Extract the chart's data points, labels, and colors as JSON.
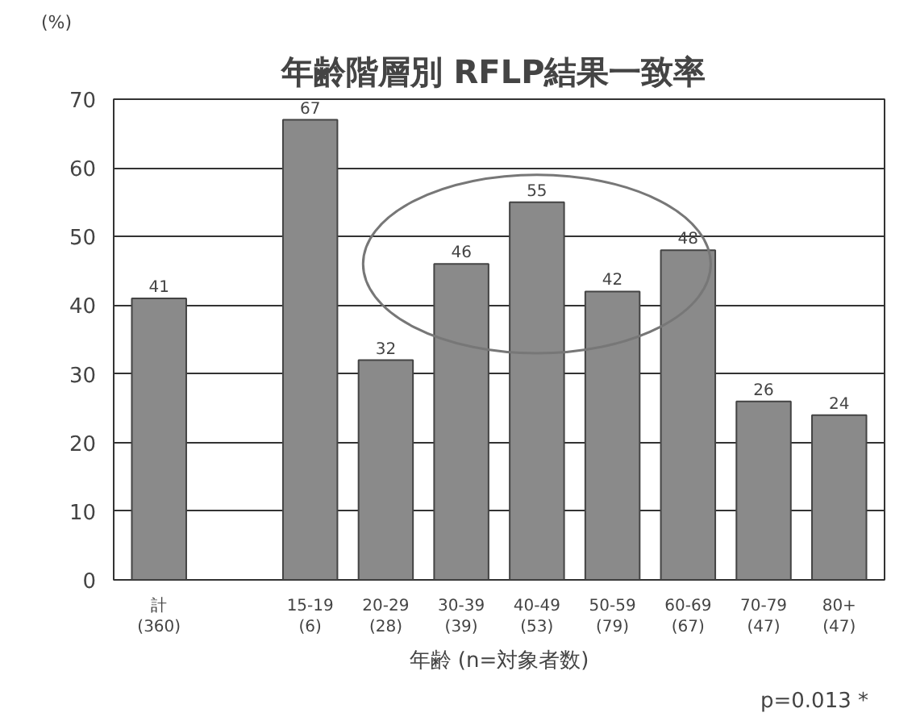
{
  "chart_data": {
    "type": "bar",
    "title": "年齢階層別  RFLP結果一致率",
    "ylabel": "(%)",
    "xlabel": "年齢 (n=対象者数)",
    "categories": [
      "計\n(360)",
      null,
      "15-19\n(6)",
      "20-29\n(28)",
      "30-39\n(39)",
      "40-49\n(53)",
      "50-59\n(79)",
      "60-69\n(67)",
      "70-79\n(47)",
      "80+\n(47)"
    ],
    "values": [
      41,
      null,
      67,
      32,
      46,
      55,
      42,
      48,
      26,
      24
    ],
    "color": "#8a8a8a",
    "ylim": [
      0,
      70
    ],
    "yticks": [
      0,
      10,
      20,
      30,
      40,
      50,
      60,
      70
    ],
    "grid": "y",
    "data_labels": true,
    "annotations": [
      "p=0.013 *"
    ]
  }
}
